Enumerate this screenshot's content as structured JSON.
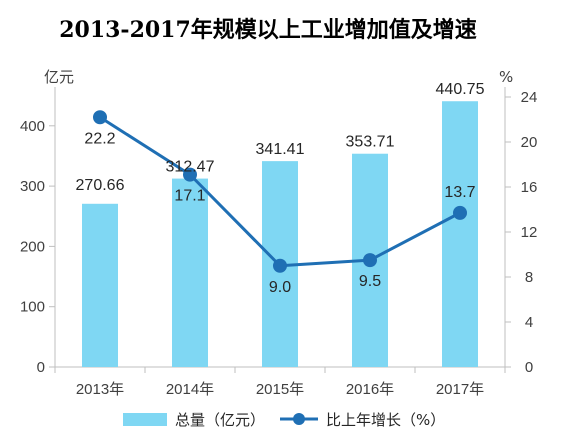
{
  "chart_data": {
    "type": "bar+line",
    "title": "2013-2017年规模以上工业增加值及增速",
    "categories": [
      "2013年",
      "2014年",
      "2015年",
      "2016年",
      "2017年"
    ],
    "y_left": {
      "unit": "亿元",
      "ylim": [
        0,
        440
      ],
      "ticks": [
        0,
        100,
        200,
        300,
        400
      ]
    },
    "y_right": {
      "unit": "%",
      "ylim": [
        0,
        24
      ],
      "ticks": [
        0,
        4,
        8,
        12,
        16,
        20,
        24
      ]
    },
    "series": [
      {
        "name": "总量（亿元）",
        "type": "bar",
        "axis": "left",
        "color": "#7fd7f3",
        "values": [
          270.66,
          312.47,
          341.41,
          353.71,
          440.75
        ],
        "labels": [
          "270.66",
          "312.47",
          "341.41",
          "353.71",
          "440.75"
        ]
      },
      {
        "name": "比上年增长（%）",
        "type": "line",
        "axis": "right",
        "color": "#1f6fb4",
        "values": [
          22.2,
          17.1,
          9.0,
          9.5,
          13.7
        ],
        "labels": [
          "22.2",
          "17.1",
          "9.0",
          "9.5",
          "13.7"
        ]
      }
    ],
    "grid": false,
    "legend": "bottom"
  }
}
